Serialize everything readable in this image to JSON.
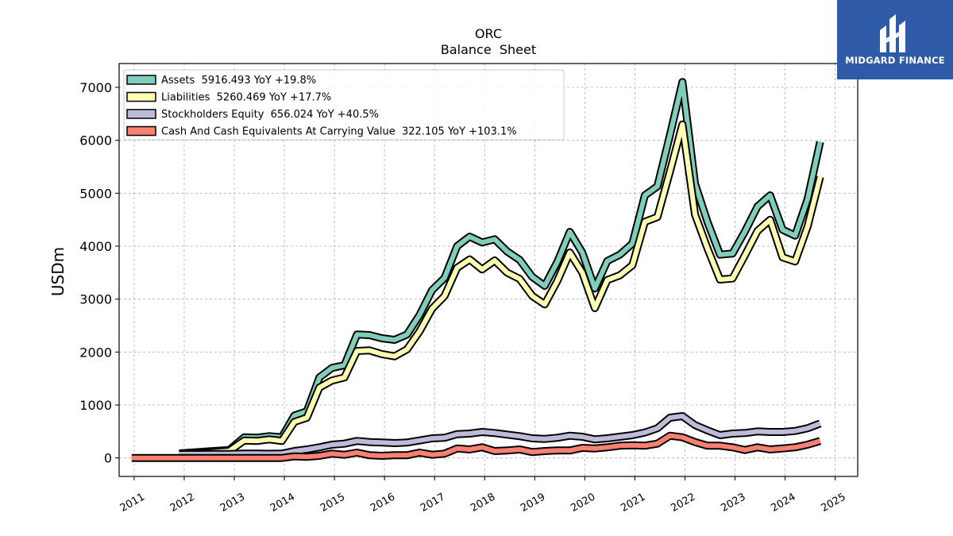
{
  "brand": {
    "name": "MIDGARD FINANCE"
  },
  "chart_data": {
    "type": "line",
    "title": "ORC",
    "subtitle": "Balance  Sheet",
    "ylabel": "USDm",
    "xlim": [
      2010.7,
      2025.45
    ],
    "ylim": [
      -350,
      7450
    ],
    "yticks": [
      0,
      1000,
      2000,
      3000,
      4000,
      5000,
      6000,
      7000
    ],
    "xticks": [
      2011,
      2012,
      2013,
      2014,
      2015,
      2016,
      2017,
      2018,
      2019,
      2020,
      2021,
      2022,
      2023,
      2024,
      2025
    ],
    "grid": true,
    "legend_position": "top-left",
    "series": [
      {
        "name": "Assets",
        "legend": "Assets  5916.493 YoY +19.8%",
        "color": "#7fcdbb",
        "x": [
          2011.9,
          2012.9,
          2013.2,
          2013.45,
          2013.7,
          2013.95,
          2014.2,
          2014.45,
          2014.7,
          2014.95,
          2015.2,
          2015.45,
          2015.7,
          2015.95,
          2016.2,
          2016.45,
          2016.7,
          2016.95,
          2017.2,
          2017.45,
          2017.7,
          2017.95,
          2018.2,
          2018.45,
          2018.7,
          2018.95,
          2019.2,
          2019.45,
          2019.7,
          2019.95,
          2020.2,
          2020.45,
          2020.7,
          2020.95,
          2021.2,
          2021.45,
          2021.7,
          2021.95,
          2022.2,
          2022.45,
          2022.7,
          2022.95,
          2023.2,
          2023.45,
          2023.7,
          2023.95,
          2024.2,
          2024.45,
          2024.7
        ],
        "values": [
          85,
          150,
          390,
          380,
          410,
          390,
          800,
          880,
          1520,
          1700,
          1750,
          2330,
          2320,
          2260,
          2230,
          2330,
          2700,
          3170,
          3400,
          4000,
          4180,
          4070,
          4130,
          3900,
          3740,
          3420,
          3250,
          3700,
          4270,
          3880,
          3200,
          3720,
          3840,
          4050,
          4960,
          5130,
          6100,
          7100,
          5180,
          4460,
          3840,
          3860,
          4280,
          4750,
          4960,
          4310,
          4200,
          4890,
          5970
        ]
      },
      {
        "name": "Liabilities",
        "legend": "Liabilities  5260.469 YoY +17.7%",
        "color": "#ffffb3",
        "x": [
          2011.9,
          2012.9,
          2013.2,
          2013.45,
          2013.7,
          2013.95,
          2014.2,
          2014.45,
          2014.7,
          2014.95,
          2015.2,
          2015.45,
          2015.7,
          2015.95,
          2016.2,
          2016.45,
          2016.7,
          2016.95,
          2017.2,
          2017.45,
          2017.7,
          2017.95,
          2018.2,
          2018.45,
          2018.7,
          2018.95,
          2019.2,
          2019.45,
          2019.7,
          2019.95,
          2020.2,
          2020.45,
          2020.7,
          2020.95,
          2021.2,
          2021.45,
          2021.7,
          2021.95,
          2022.2,
          2022.45,
          2022.7,
          2022.95,
          2023.2,
          2023.45,
          2023.7,
          2023.95,
          2024.2,
          2024.45,
          2024.7
        ],
        "values": [
          60,
          130,
          330,
          320,
          350,
          320,
          680,
          760,
          1330,
          1460,
          1520,
          2020,
          2030,
          1960,
          1920,
          2050,
          2390,
          2820,
          3060,
          3590,
          3750,
          3560,
          3730,
          3500,
          3380,
          3060,
          2900,
          3340,
          3880,
          3500,
          2830,
          3360,
          3450,
          3640,
          4460,
          4550,
          5410,
          6300,
          4600,
          3960,
          3370,
          3390,
          3830,
          4290,
          4500,
          3790,
          3710,
          4370,
          5310
        ]
      },
      {
        "name": "Stockholders Equity",
        "legend": "Stockholders Equity  656.024 YoY +40.5%",
        "color": "#bebada",
        "x": [
          2011.9,
          2012.9,
          2013.2,
          2013.45,
          2013.7,
          2013.95,
          2014.2,
          2014.45,
          2014.7,
          2014.95,
          2015.2,
          2015.45,
          2015.7,
          2015.95,
          2016.2,
          2016.45,
          2016.7,
          2016.95,
          2017.2,
          2017.45,
          2017.7,
          2017.95,
          2018.2,
          2018.45,
          2018.7,
          2018.95,
          2019.2,
          2019.45,
          2019.7,
          2019.95,
          2020.2,
          2020.45,
          2020.7,
          2020.95,
          2021.2,
          2021.45,
          2021.7,
          2021.95,
          2022.2,
          2022.45,
          2022.7,
          2022.95,
          2023.2,
          2023.45,
          2023.7,
          2023.95,
          2024.2,
          2024.45,
          2024.7
        ],
        "values": [
          70,
          75,
          80,
          80,
          78,
          80,
          130,
          160,
          200,
          250,
          270,
          320,
          300,
          290,
          280,
          290,
          330,
          370,
          380,
          450,
          460,
          490,
          470,
          440,
          410,
          370,
          360,
          380,
          420,
          400,
          350,
          370,
          400,
          430,
          480,
          560,
          760,
          790,
          620,
          520,
          430,
          460,
          470,
          500,
          490,
          490,
          510,
          560,
          650
        ]
      },
      {
        "name": "Cash And Cash Equivalents At Carrying Value",
        "legend": "Cash And Cash Equivalents At Carrying Value  322.105 YoY +103.1%",
        "color": "#fb8072",
        "x": [
          2010.95,
          2011.9,
          2012.9,
          2013.2,
          2013.45,
          2013.7,
          2013.95,
          2014.2,
          2014.45,
          2014.7,
          2014.95,
          2015.2,
          2015.45,
          2015.7,
          2015.95,
          2016.2,
          2016.45,
          2016.7,
          2016.95,
          2017.2,
          2017.45,
          2017.7,
          2017.95,
          2018.2,
          2018.45,
          2018.7,
          2018.95,
          2019.2,
          2019.45,
          2019.7,
          2019.95,
          2020.2,
          2020.45,
          2020.7,
          2020.95,
          2021.2,
          2021.45,
          2021.7,
          2021.95,
          2022.2,
          2022.45,
          2022.7,
          2022.95,
          2023.2,
          2023.45,
          2023.7,
          2023.95,
          2024.2,
          2024.45,
          2024.7
        ],
        "values": [
          0,
          0,
          0,
          0,
          0,
          0,
          0,
          30,
          20,
          40,
          80,
          60,
          100,
          50,
          40,
          50,
          50,
          100,
          60,
          80,
          180,
          160,
          200,
          130,
          140,
          160,
          110,
          130,
          140,
          140,
          190,
          180,
          200,
          230,
          240,
          230,
          270,
          420,
          390,
          300,
          230,
          230,
          200,
          150,
          200,
          160,
          180,
          200,
          250,
          320
        ]
      }
    ]
  }
}
